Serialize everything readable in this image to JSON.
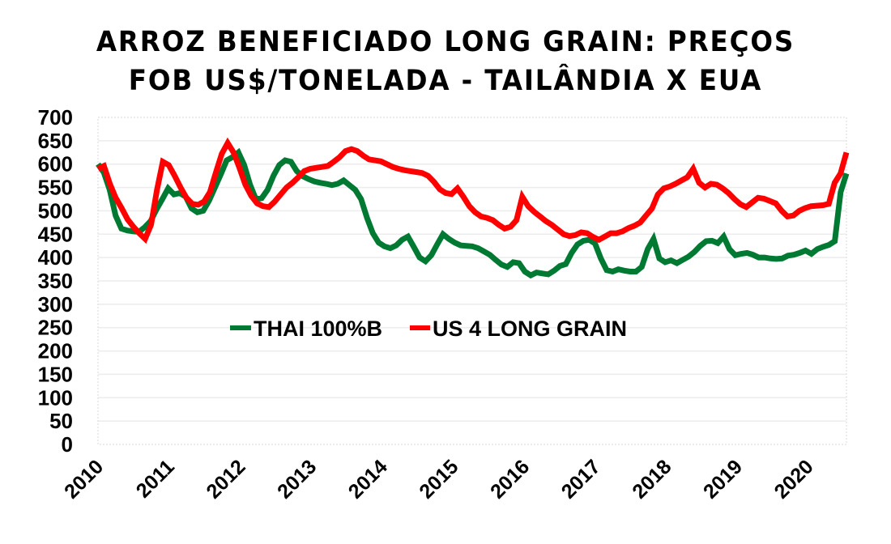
{
  "chart_data": {
    "type": "line",
    "title": "ARROZ BENEFICIADO LONG GRAIN: PREÇOS FOB US$/TONELADA - TAILÂNDIA X EUA",
    "title_lines": [
      "ARROZ BENEFICIADO LONG GRAIN: PREÇOS",
      "FOB US$/TONELADA - TAILÂNDIA X EUA"
    ],
    "xlabel": "",
    "ylabel": "",
    "ylim": [
      0,
      700
    ],
    "ytick_step": 50,
    "yticks": [
      "0",
      "50",
      "100",
      "150",
      "200",
      "250",
      "300",
      "350",
      "400",
      "450",
      "500",
      "550",
      "600",
      "650",
      "700"
    ],
    "x_frequency": "monthly",
    "x_start": "2010-01",
    "xtick_labels": [
      "2010",
      "2011",
      "2012",
      "2013",
      "2014",
      "2015",
      "2016",
      "2017",
      "2018",
      "2019",
      "2020"
    ],
    "xtick_month_index": [
      0,
      12,
      24,
      36,
      48,
      60,
      72,
      84,
      96,
      108,
      120
    ],
    "grid": true,
    "legend_position": "center",
    "series": [
      {
        "name": "THAI 100%B",
        "color": "#007A33",
        "values": [
          600,
          582,
          545,
          490,
          462,
          458,
          456,
          455,
          465,
          478,
          503,
          525,
          548,
          535,
          538,
          530,
          505,
          497,
          500,
          522,
          550,
          578,
          608,
          615,
          625,
          598,
          556,
          525,
          527,
          545,
          575,
          598,
          608,
          605,
          585,
          574,
          568,
          563,
          560,
          558,
          555,
          558,
          565,
          555,
          545,
          525,
          485,
          452,
          432,
          424,
          420,
          426,
          438,
          445,
          423,
          400,
          392,
          405,
          428,
          450,
          440,
          432,
          426,
          425,
          424,
          420,
          413,
          406,
          395,
          385,
          380,
          390,
          388,
          370,
          362,
          368,
          366,
          364,
          372,
          382,
          386,
          410,
          428,
          436,
          438,
          430,
          398,
          373,
          370,
          375,
          372,
          370,
          370,
          380,
          418,
          440,
          398,
          390,
          394,
          388,
          395,
          402,
          412,
          425,
          435,
          436,
          431,
          445,
          418,
          405,
          408,
          410,
          406,
          400,
          400,
          398,
          397,
          398,
          404,
          406,
          410,
          415,
          408,
          418,
          423,
          427,
          435
        ],
        "values_tail": [
          540,
          580
        ]
      },
      {
        "name": "US 4 LONG GRAIN",
        "color": "#FF0000",
        "values": [
          590,
          596,
          558,
          528,
          506,
          482,
          466,
          452,
          440,
          470,
          545,
          605,
          598,
          575,
          550,
          528,
          515,
          513,
          520,
          540,
          582,
          622,
          645,
          625,
          592,
          556,
          532,
          516,
          510,
          508,
          520,
          535,
          550,
          560,
          572,
          585,
          590,
          592,
          594,
          596,
          605,
          615,
          628,
          632,
          628,
          618,
          610,
          608,
          606,
          600,
          594,
          590,
          587,
          585,
          583,
          581,
          575,
          562,
          546,
          538,
          536,
          548,
          530,
          510,
          497,
          488,
          485,
          480,
          470,
          462,
          466,
          480,
          530,
          510,
          498,
          488,
          478,
          470,
          460,
          450,
          446,
          448,
          454,
          452,
          444,
          438,
          445,
          452,
          452,
          456,
          463,
          468,
          475,
          490,
          505,
          535,
          548,
          552,
          558,
          565,
          572,
          590,
          560,
          550,
          558,
          556,
          548,
          538,
          525,
          514,
          508,
          518,
          528,
          526,
          521,
          516,
          500,
          488,
          490,
          500,
          506,
          510,
          511,
          512,
          515,
          560,
          580
        ],
        "values_tail": [
          625
        ]
      }
    ]
  }
}
